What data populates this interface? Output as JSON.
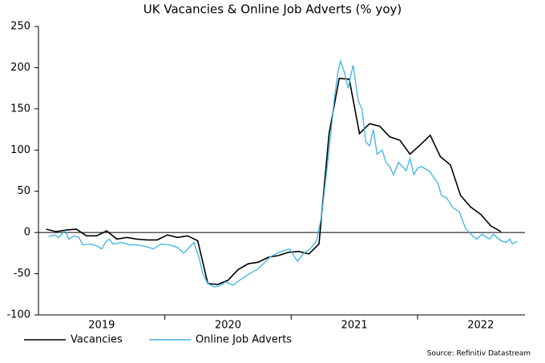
{
  "chart_data": {
    "type": "line",
    "title": "UK Vacancies & Online Job Adverts (% yoy)",
    "source": "Source: Refinitiv Datastream",
    "xlim": [
      2019,
      2022.85
    ],
    "xticks": [
      2020,
      2021,
      2022
    ],
    "xlabels": [
      2019,
      2020,
      2021,
      2022
    ],
    "ylim": [
      -100,
      250
    ],
    "yticks": [
      -100,
      -50,
      0,
      50,
      100,
      150,
      200,
      250
    ],
    "legend": "bottom-left",
    "series": [
      {
        "name": "Vacancies",
        "color": "#000000",
        "x": [
          2019.06,
          2019.14,
          2019.22,
          2019.3,
          2019.38,
          2019.46,
          2019.54,
          2019.62,
          2019.7,
          2019.78,
          2019.86,
          2019.94,
          2020.02,
          2020.1,
          2020.18,
          2020.26,
          2020.34,
          2020.42,
          2020.5,
          2020.58,
          2020.66,
          2020.74,
          2020.82,
          2020.9,
          2020.98,
          2021.06,
          2021.14,
          2021.22,
          2021.3,
          2021.38,
          2021.46,
          2021.54,
          2021.62,
          2021.7,
          2021.78,
          2021.86,
          2021.94,
          2022.02,
          2022.1,
          2022.18,
          2022.26,
          2022.34,
          2022.42,
          2022.5,
          2022.58,
          2022.66
        ],
        "values": [
          4,
          1,
          3,
          4,
          -4,
          -4,
          2,
          -8,
          -6,
          -8,
          -9,
          -9,
          -3,
          -6,
          -4,
          -10,
          -62,
          -63,
          -58,
          -45,
          -38,
          -36,
          -30,
          -28,
          -24,
          -23,
          -26,
          -14,
          120,
          187,
          186,
          120,
          132,
          129,
          116,
          112,
          95,
          106,
          118,
          92,
          82,
          45,
          31,
          22,
          8,
          1
        ]
      },
      {
        "name": "Online Job Adverts",
        "color": "#3cb4e8",
        "x": [
          2019.08,
          2019.13,
          2019.16,
          2019.21,
          2019.24,
          2019.28,
          2019.32,
          2019.35,
          2019.41,
          2019.46,
          2019.5,
          2019.53,
          2019.56,
          2019.59,
          2019.66,
          2019.72,
          2019.78,
          2019.85,
          2019.91,
          2019.97,
          2020.04,
          2020.1,
          2020.15,
          2020.23,
          2020.27,
          2020.3,
          2020.34,
          2020.39,
          2020.43,
          2020.48,
          2020.54,
          2020.59,
          2020.67,
          2020.73,
          2020.78,
          2020.83,
          2020.89,
          2020.94,
          2020.99,
          2021.02,
          2021.05,
          2021.1,
          2021.15,
          2021.2,
          2021.24,
          2021.27,
          2021.3,
          2021.34,
          2021.37,
          2021.39,
          2021.42,
          2021.45,
          2021.49,
          2021.53,
          2021.56,
          2021.59,
          2021.62,
          2021.65,
          2021.68,
          2021.72,
          2021.75,
          2021.78,
          2021.81,
          2021.85,
          2021.91,
          2021.94,
          2021.97,
          2022.0,
          2022.03,
          2022.09,
          2022.16,
          2022.19,
          2022.23,
          2022.28,
          2022.33,
          2022.38,
          2022.44,
          2022.47,
          2022.51,
          2022.54,
          2022.57,
          2022.6,
          2022.66,
          2022.7,
          2022.73,
          2022.75,
          2022.77,
          2022.79
        ],
        "values": [
          -5,
          -3,
          -6,
          2,
          -8,
          -4,
          -6,
          -15,
          -14,
          -16,
          -20,
          -12,
          -8,
          -14,
          -12,
          -15,
          -15,
          -17,
          -20,
          -14,
          -15,
          -18,
          -25,
          -12,
          -30,
          -50,
          -62,
          -66,
          -65,
          -60,
          -64,
          -58,
          -50,
          -45,
          -38,
          -30,
          -25,
          -22,
          -20,
          -28,
          -35,
          -25,
          -20,
          -10,
          20,
          60,
          100,
          160,
          195,
          208,
          195,
          175,
          203,
          160,
          150,
          110,
          105,
          125,
          95,
          100,
          85,
          80,
          70,
          85,
          75,
          90,
          70,
          78,
          80,
          75,
          60,
          45,
          42,
          30,
          25,
          5,
          -5,
          -8,
          -2,
          -5,
          -8,
          -2,
          -10,
          -12,
          -8,
          -14,
          -12,
          -11
        ]
      }
    ]
  }
}
